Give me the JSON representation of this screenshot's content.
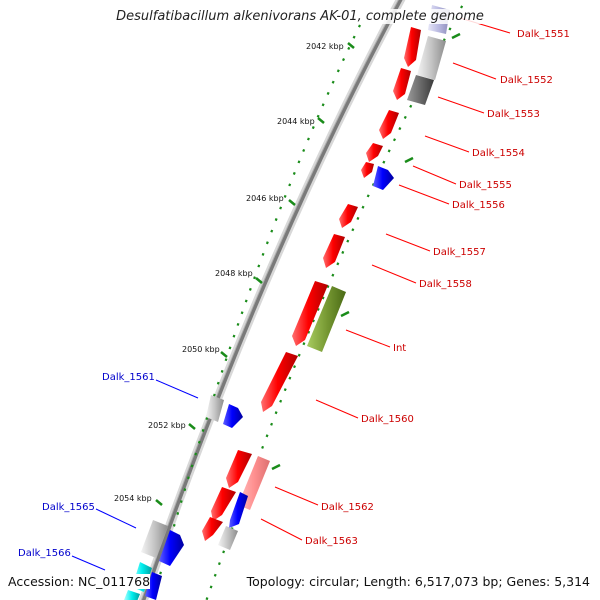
{
  "title": "Desulfatibacillum alkenivorans AK-01, complete genome",
  "accession": "Accession: NC_011768",
  "summary": "Topology: circular; Length: 6,517,073 bp; Genes: 5,314",
  "colors": {
    "forward_strand": "#ff0000",
    "reverse_strand": "#0000ff",
    "other_gene": "#b0b0b0",
    "rna": "#669922",
    "backbone": "#808080",
    "ticks": "#1a8c1a"
  },
  "scale_labels": [
    "2042 kbp",
    "2044 kbp",
    "2046 kbp",
    "2048 kbp",
    "2050 kbp",
    "2052 kbp",
    "2054 kbp"
  ],
  "gene_labels": [
    {
      "text": "Dalk_1551",
      "color": "#cc0000"
    },
    {
      "text": "Dalk_1552",
      "color": "#cc0000"
    },
    {
      "text": "Dalk_1553",
      "color": "#cc0000"
    },
    {
      "text": "Dalk_1554",
      "color": "#cc0000"
    },
    {
      "text": "Dalk_1555",
      "color": "#cc0000"
    },
    {
      "text": "Dalk_1556",
      "color": "#cc0000"
    },
    {
      "text": "Dalk_1557",
      "color": "#cc0000"
    },
    {
      "text": "Dalk_1558",
      "color": "#cc0000"
    },
    {
      "text": "Int",
      "color": "#cc0000"
    },
    {
      "text": "Dalk_1560",
      "color": "#cc0000"
    },
    {
      "text": "Dalk_1561",
      "color": "#0000cc"
    },
    {
      "text": "Dalk_1562",
      "color": "#cc0000"
    },
    {
      "text": "Dalk_1563",
      "color": "#cc0000"
    },
    {
      "text": "Dalk_1565",
      "color": "#0000cc"
    },
    {
      "text": "Dalk_1566",
      "color": "#0000cc"
    }
  ]
}
